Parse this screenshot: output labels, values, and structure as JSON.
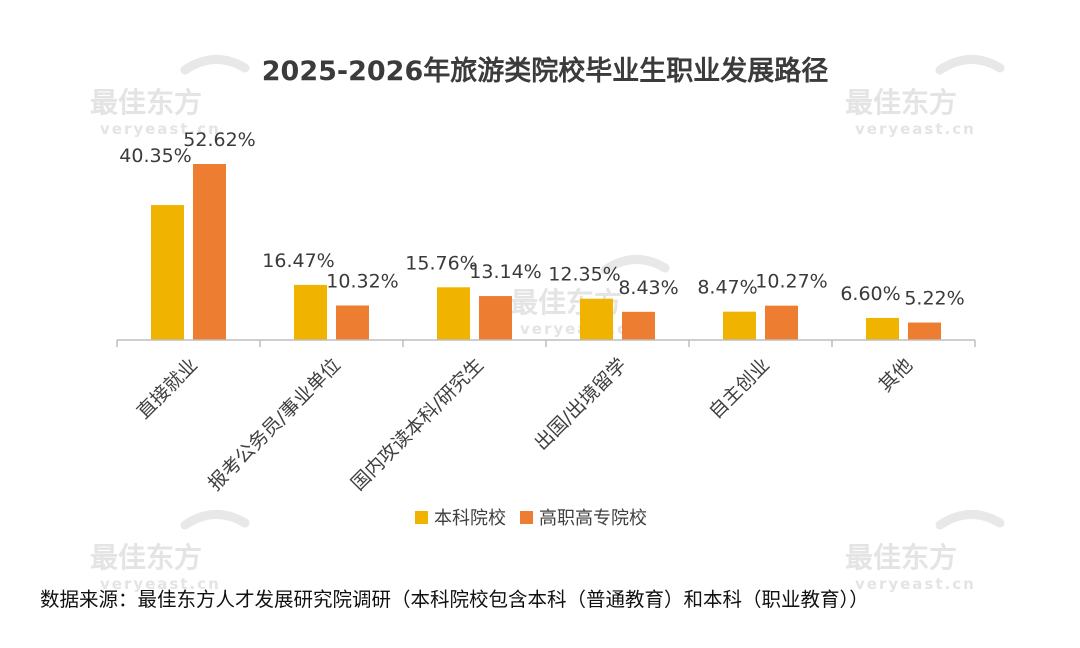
{
  "chart_data": {
    "type": "bar",
    "title": "2025-2026年旅游类院校毕业生职业发展路径",
    "categories": [
      "直接就业",
      "报考公务员/事业单位",
      "国内攻读本科/研究生",
      "出国/出境留学",
      "自主创业",
      "其他"
    ],
    "series": [
      {
        "name": "本科院校",
        "values": [
          40.35,
          16.47,
          15.76,
          12.35,
          8.47,
          6.6
        ],
        "labels": [
          "40.35%",
          "16.47%",
          "15.76%",
          "12.35%",
          "8.47%",
          "6.60%"
        ],
        "color": "#F0B400"
      },
      {
        "name": "高职高专院校",
        "values": [
          52.62,
          10.32,
          13.14,
          8.43,
          10.27,
          5.22
        ],
        "labels": [
          "52.62%",
          "10.32%",
          "13.14%",
          "8.43%",
          "10.27%",
          "5.22%"
        ],
        "color": "#ED7D31"
      }
    ],
    "ylim": [
      0,
      52.62
    ],
    "grid": false,
    "legend": "bottom-center",
    "xlabel": "",
    "ylabel": ""
  },
  "watermark": {
    "brand": "最佳东方",
    "domain": "veryeast.cn"
  },
  "source_note": "数据来源：最佳东方人才发展研究院调研（本科院校包含本科（普通教育）和本科（职业教育））"
}
